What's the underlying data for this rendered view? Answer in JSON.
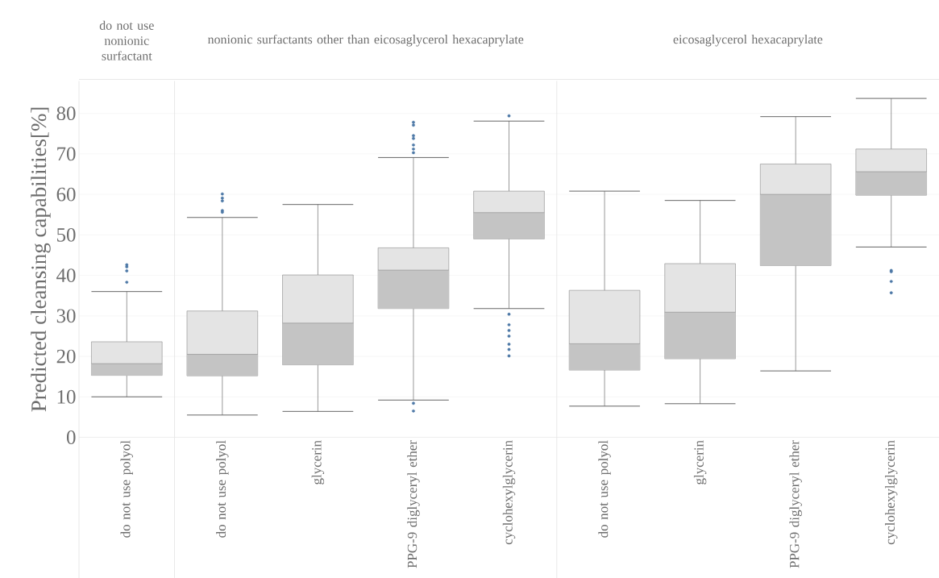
{
  "chart_data": [
    {
      "type": "box",
      "title": "do not use nonionic surfactant",
      "ylabel": "Predicted cleansing capabilities[%]",
      "categories": [
        "do not use polyol"
      ],
      "ylim": [
        0,
        88
      ],
      "yticks": [
        0,
        10,
        20,
        30,
        40,
        50,
        60,
        70,
        80
      ],
      "grid": "y",
      "color": "#e4e4e4",
      "boxes": [
        {
          "low": 10.0,
          "q1": 15.3,
          "median": 18.2,
          "q3": 23.6,
          "high": 36.0,
          "outliers": [
            42.6,
            42.1,
            41.1,
            38.3
          ]
        }
      ]
    },
    {
      "type": "box",
      "title": "nonionic surfactants other than eicosaglycerol hexacaprylate",
      "categories": [
        "do not use polyol",
        "glycerin",
        "PPG-9 diglyceryl ether",
        "cyclohexylglycerin"
      ],
      "ylim": [
        0,
        88
      ],
      "yticks": [
        0,
        10,
        20,
        30,
        40,
        50,
        60,
        70,
        80
      ],
      "grid": "y",
      "tick_labels": "x",
      "color": "#e4e4e4",
      "boxes": [
        {
          "low": 5.5,
          "q1": 15.2,
          "median": 20.5,
          "q3": 31.2,
          "high": 54.3,
          "outliers": [
            60.1,
            59.1,
            58.4,
            56.0,
            55.6
          ]
        },
        {
          "low": 6.4,
          "q1": 17.9,
          "median": 28.2,
          "q3": 40.1,
          "high": 57.5
        },
        {
          "low": 9.2,
          "q1": 31.8,
          "median": 41.3,
          "q3": 46.8,
          "high": 69.1,
          "outliers": [
            77.8,
            77.1,
            74.5,
            73.8,
            72.2,
            71.2,
            70.3,
            8.4,
            6.5
          ]
        },
        {
          "low": 31.8,
          "q1": 49.0,
          "median": 55.5,
          "q3": 60.8,
          "high": 78.1,
          "outliers": [
            79.4,
            30.4,
            27.8,
            26.4,
            25.0,
            23.0,
            21.7,
            20.1
          ]
        }
      ]
    },
    {
      "type": "box",
      "title": "eicosaglycerol hexacaprylate",
      "categories": [
        "do not use polyol",
        "glycerin",
        "PPG-9 diglyceryl ether",
        "cyclohexylglycerin"
      ],
      "ylim": [
        0,
        88
      ],
      "yticks": [
        0,
        10,
        20,
        30,
        40,
        50,
        60,
        70,
        80
      ],
      "grid": "y",
      "tick_labels": "x",
      "color": "#e4e4e4",
      "boxes": [
        {
          "low": 7.7,
          "q1": 16.6,
          "median": 23.1,
          "q3": 36.3,
          "high": 60.8
        },
        {
          "low": 8.3,
          "q1": 19.4,
          "median": 30.9,
          "q3": 42.9,
          "high": 58.5
        },
        {
          "low": 16.4,
          "q1": 42.4,
          "median": 60.0,
          "q3": 67.5,
          "high": 79.2
        },
        {
          "low": 47.0,
          "q1": 59.8,
          "median": 65.6,
          "q3": 71.2,
          "high": 83.7,
          "outliers": [
            41.2,
            40.9,
            38.5,
            35.7
          ]
        }
      ]
    }
  ]
}
